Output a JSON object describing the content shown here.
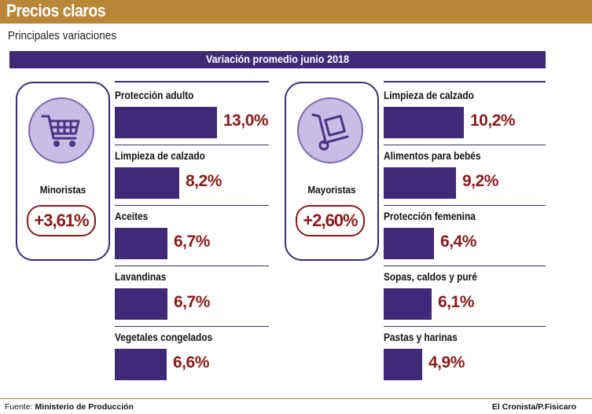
{
  "header": {
    "title": "Precios claros",
    "subtitle": "Principales variaciones"
  },
  "period_label": "Variación promedio junio 2018",
  "colors": {
    "bar": "#3f2a77",
    "value_text": "#8b1a1a",
    "header_bg": "#b8873a",
    "icon_bg": "#c9bde6"
  },
  "chart_data": [
    {
      "type": "bar",
      "title": "Minoristas",
      "average": "+3,61%",
      "icon": "shopping-cart-icon",
      "categories": [
        "Protección adulto",
        "Limpieza de calzado",
        "Aceites",
        "Lavandinas",
        "Vegetales congelados"
      ],
      "values": [
        13.0,
        8.2,
        6.7,
        6.7,
        6.6
      ],
      "value_labels": [
        "13,0%",
        "8,2%",
        "6,7%",
        "6,7%",
        "6,6%"
      ]
    },
    {
      "type": "bar",
      "title": "Mayoristas",
      "average": "+2,60%",
      "icon": "hand-truck-icon",
      "categories": [
        "Limpieza de calzado",
        "Alimentos para bebés",
        "Protección femenina",
        "Sopas, caldos y puré",
        "Pastas y harinas"
      ],
      "values": [
        10.2,
        9.2,
        6.4,
        6.1,
        4.9
      ],
      "value_labels": [
        "10,2%",
        "9,2%",
        "6,4%",
        "6,1%",
        "4,9%"
      ]
    }
  ],
  "footer": {
    "source_prefix": "Fuente:",
    "source": "Ministerio de Producción",
    "credit": "El Cronista/P.Fisicaro"
  }
}
